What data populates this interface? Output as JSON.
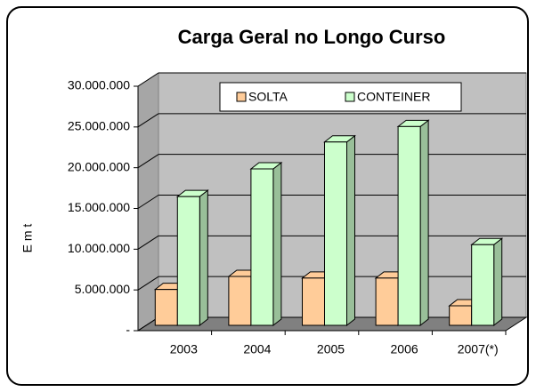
{
  "chart_data": {
    "type": "bar3d",
    "title": "Carga Geral no Longo Curso",
    "y_label": "E m t",
    "categories": [
      "2003",
      "2004",
      "2005",
      "2006",
      "2007(*)"
    ],
    "series": [
      {
        "name": "SOLTA",
        "color": "#ffcc99",
        "values": [
          4400000,
          6000000,
          5800000,
          5800000,
          2400000
        ]
      },
      {
        "name": "CONTEINER",
        "color": "#ccffcc",
        "values": [
          15800000,
          19200000,
          22500000,
          24400000,
          9900000
        ]
      }
    ],
    "ylim": [
      0,
      30000000
    ],
    "yticks": [
      {
        "value": 0,
        "label": "-"
      },
      {
        "value": 5000000,
        "label": "5.000.000"
      },
      {
        "value": 10000000,
        "label": "10.000.000"
      },
      {
        "value": 15000000,
        "label": "15.000.000"
      },
      {
        "value": 20000000,
        "label": "20.000.000"
      },
      {
        "value": 25000000,
        "label": "25.000.000"
      },
      {
        "value": 30000000,
        "label": "30.000.000"
      }
    ],
    "grid": true,
    "legend": "top"
  }
}
